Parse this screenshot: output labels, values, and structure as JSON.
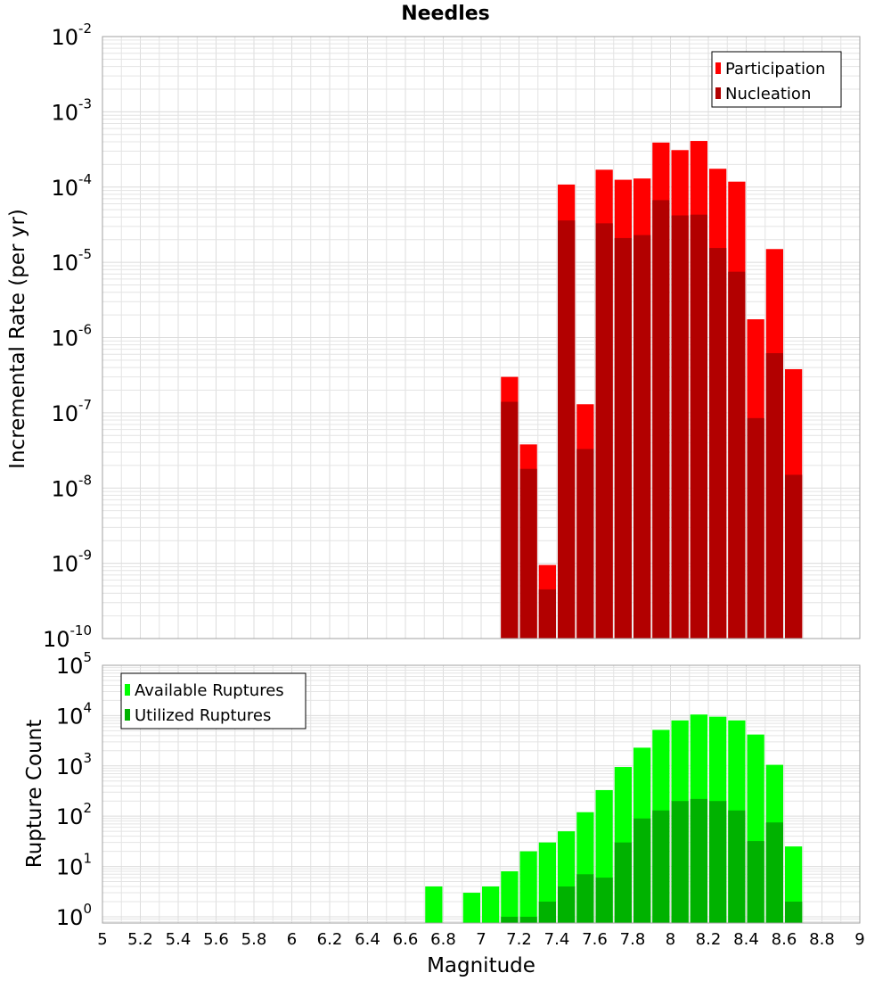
{
  "chart_data": [
    {
      "type": "bar",
      "title": "Needles",
      "ylabel": "Incremental Rate (per yr)",
      "xlabel": "",
      "xlim": [
        5,
        9
      ],
      "ylim": [
        1e-10,
        0.01
      ],
      "yscale": "log",
      "grid": true,
      "legend_position": "top-right",
      "x": [
        7.15,
        7.25,
        7.35,
        7.45,
        7.55,
        7.65,
        7.75,
        7.85,
        7.95,
        8.05,
        8.15,
        8.25,
        8.35,
        8.45,
        8.55,
        8.65
      ],
      "series": [
        {
          "name": "Participation",
          "color": "#ff0000",
          "values": [
            3e-07,
            3.8e-08,
            9.5e-10,
            0.000108,
            1.3e-07,
            0.00017,
            0.000125,
            0.00013,
            0.00039,
            0.00031,
            0.00041,
            0.000175,
            0.000118,
            1.75e-06,
            1.5e-05,
            3.8e-07
          ]
        },
        {
          "name": "Nucleation",
          "color": "#b20000",
          "values": [
            1.4e-07,
            1.8e-08,
            4.5e-10,
            3.6e-05,
            3.3e-08,
            3.3e-05,
            2.1e-05,
            2.3e-05,
            6.7e-05,
            4.2e-05,
            4.3e-05,
            1.55e-05,
            7.5e-06,
            8.5e-08,
            6.2e-07,
            1.5e-08
          ]
        }
      ],
      "y_ticks": [
        {
          "base": "10",
          "exp": "-2",
          "value": 0.01
        },
        {
          "base": "10",
          "exp": "-3",
          "value": 0.001
        },
        {
          "base": "10",
          "exp": "-4",
          "value": 0.0001
        },
        {
          "base": "10",
          "exp": "-5",
          "value": 1e-05
        },
        {
          "base": "10",
          "exp": "-6",
          "value": 1e-06
        },
        {
          "base": "10",
          "exp": "-7",
          "value": 1e-07
        },
        {
          "base": "10",
          "exp": "-8",
          "value": 1e-08
        },
        {
          "base": "10",
          "exp": "-9",
          "value": 1e-09
        },
        {
          "base": "10",
          "exp": "-10",
          "value": 1e-10
        }
      ]
    },
    {
      "type": "bar",
      "title": "",
      "ylabel": "Rupture Count",
      "xlabel": "Magnitude",
      "xlim": [
        5,
        9
      ],
      "ylim": [
        0.75,
        100000.0
      ],
      "yscale": "log",
      "grid": true,
      "legend_position": "top-left",
      "x_ticks": [
        "5",
        "5.2",
        "5.4",
        "5.6",
        "5.8",
        "6",
        "6.2",
        "6.4",
        "6.6",
        "6.8",
        "7",
        "7.2",
        "7.4",
        "7.6",
        "7.8",
        "8",
        "8.2",
        "8.4",
        "8.6",
        "8.8",
        "9"
      ],
      "x": [
        6.75,
        6.95,
        7.05,
        7.15,
        7.25,
        7.35,
        7.45,
        7.55,
        7.65,
        7.75,
        7.85,
        7.95,
        8.05,
        8.15,
        8.25,
        8.35,
        8.45,
        8.55,
        8.65
      ],
      "series": [
        {
          "name": "Available Ruptures",
          "color": "#00ff00",
          "values": [
            4,
            3,
            4,
            8,
            20,
            30,
            50,
            120,
            330,
            950,
            2300,
            5200,
            8000,
            10500,
            9500,
            8000,
            4200,
            1050,
            25
          ]
        },
        {
          "name": "Utilized Ruptures",
          "color": "#00b200",
          "values": [
            0,
            0,
            0,
            1,
            1,
            2,
            4,
            7,
            6,
            30,
            90,
            130,
            200,
            220,
            200,
            130,
            32,
            75,
            2
          ]
        }
      ],
      "y_ticks": [
        {
          "base": "10",
          "exp": "5",
          "value": 100000.0
        },
        {
          "base": "10",
          "exp": "4",
          "value": 10000.0
        },
        {
          "base": "10",
          "exp": "3",
          "value": 1000.0
        },
        {
          "base": "10",
          "exp": "2",
          "value": 100.0
        },
        {
          "base": "10",
          "exp": "1",
          "value": 10.0
        },
        {
          "base": "10",
          "exp": "0",
          "value": 1
        }
      ]
    }
  ]
}
